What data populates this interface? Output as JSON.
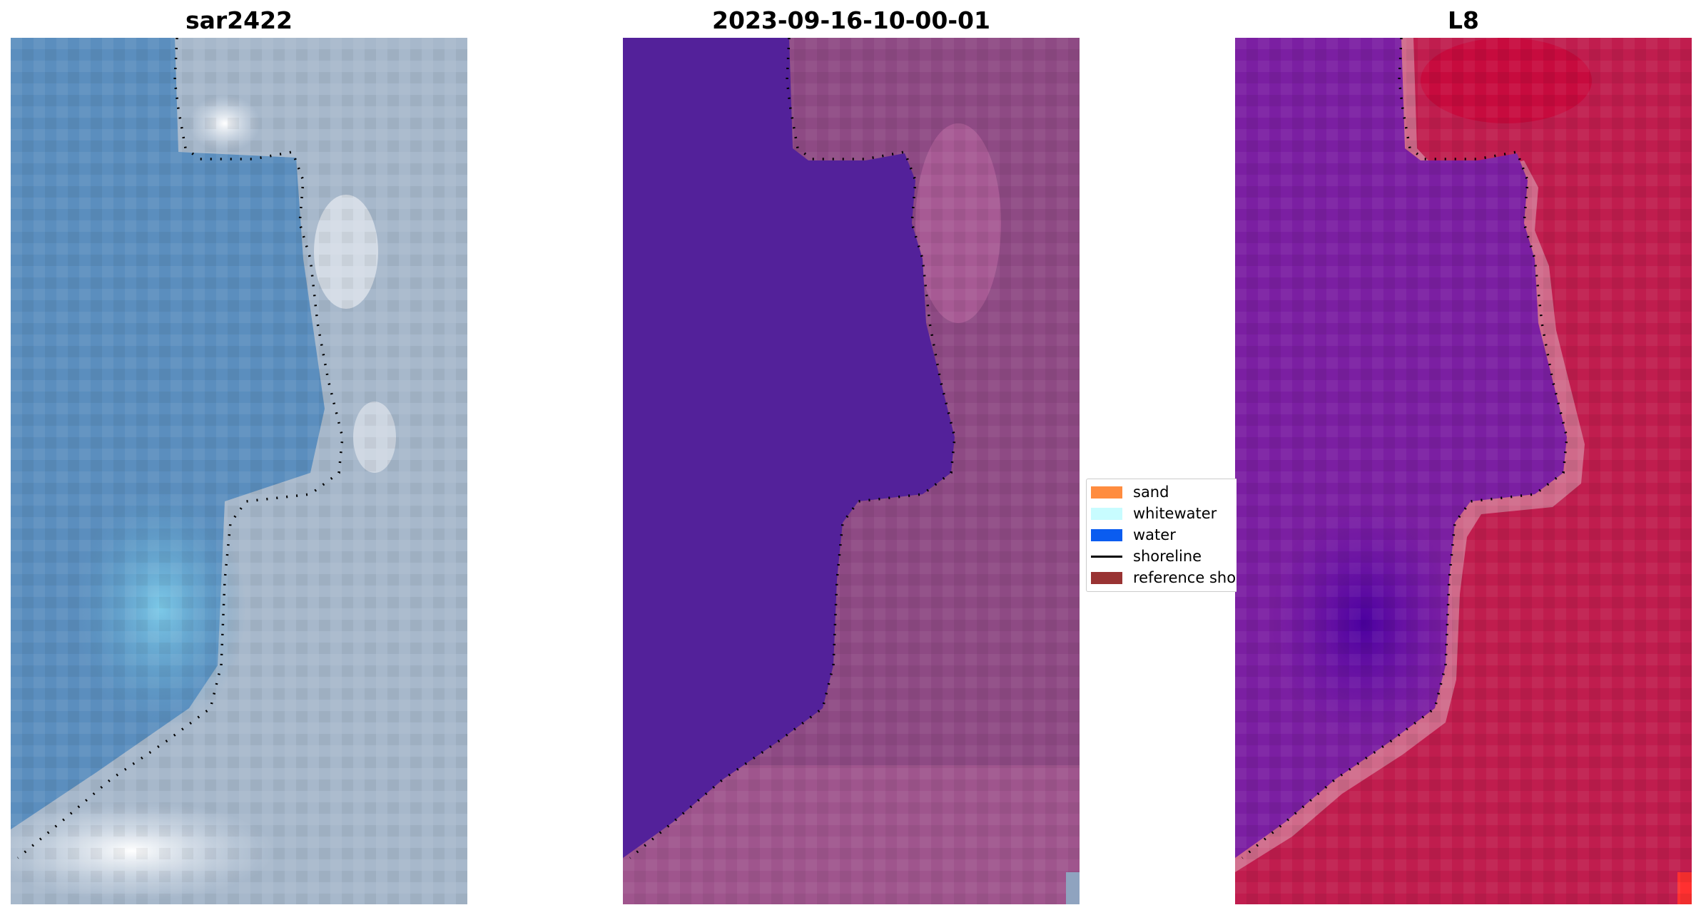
{
  "panels": [
    {
      "title": "sar2422"
    },
    {
      "title": "2023-09-16-10-00-01"
    },
    {
      "title": "L8"
    }
  ],
  "legend": {
    "items": [
      {
        "label": "sand",
        "type": "patch",
        "color": "#ff8c3f"
      },
      {
        "label": "whitewater",
        "type": "patch",
        "color": "#c8fcff"
      },
      {
        "label": "water",
        "type": "patch",
        "color": "#0a5cf0"
      },
      {
        "label": "shoreline",
        "type": "line",
        "color": "#000000"
      },
      {
        "label": "reference sho",
        "type": "patch",
        "color": "#993333"
      }
    ]
  },
  "colors": {
    "rgb_land": "#9fb3c9",
    "rgb_water": "#5b8fbf",
    "class_water": "#53219a",
    "class_land": "#8e4a84",
    "index_water": "#7b1fa2",
    "index_land": "#c01d4e"
  }
}
